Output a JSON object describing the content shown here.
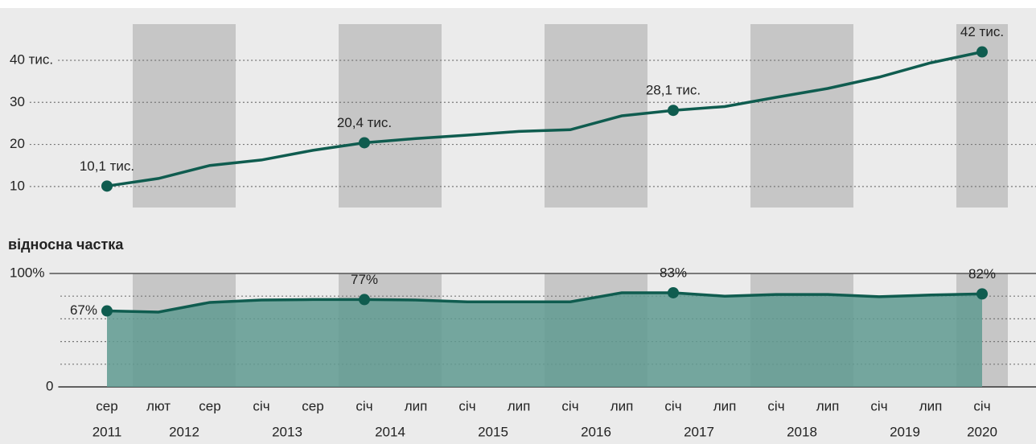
{
  "chart_data": [
    {
      "type": "line",
      "color": "#0f5c4f",
      "values": [
        10.1,
        11.9,
        15,
        16.3,
        18.6,
        20.4,
        21.4,
        22.2,
        23.1,
        23.5,
        26.8,
        28.1,
        29.0,
        31.2,
        33.3,
        36,
        39.4,
        42
      ],
      "value_labels": [
        "10,1 тис.",
        null,
        null,
        null,
        null,
        "20,4 тис.",
        null,
        null,
        null,
        null,
        null,
        "28,1 тис.",
        null,
        null,
        null,
        null,
        null,
        "42 тис."
      ],
      "ylim": [
        5,
        48.6
      ],
      "yticks": [
        10,
        20,
        30,
        {
          "value": 40,
          "label": "40 тис."
        }
      ],
      "grid": true
    },
    {
      "type": "area",
      "subtitle": "відносна частка",
      "color": "#0f5c4f",
      "fill": "#5f9a90",
      "categories": [
        "сер",
        "лют",
        "сер",
        "січ",
        "сер",
        "січ",
        "лип",
        "січ",
        "лип",
        "січ",
        "лип",
        "січ",
        "лип",
        "січ",
        "лип",
        "січ",
        "лип",
        "січ"
      ],
      "x_groups": [
        {
          "label": "2011",
          "categories": [
            0
          ],
          "shaded": false
        },
        {
          "label": "2012",
          "categories": [
            1,
            2
          ],
          "shaded": true
        },
        {
          "label": "2013",
          "categories": [
            3,
            4
          ],
          "shaded": false
        },
        {
          "label": "2014",
          "categories": [
            5,
            6
          ],
          "shaded": true
        },
        {
          "label": "2015",
          "categories": [
            7,
            8
          ],
          "shaded": false
        },
        {
          "label": "2016",
          "categories": [
            9,
            10
          ],
          "shaded": true
        },
        {
          "label": "2017",
          "categories": [
            11,
            12
          ],
          "shaded": false
        },
        {
          "label": "2018",
          "categories": [
            13,
            14
          ],
          "shaded": true
        },
        {
          "label": "2019",
          "categories": [
            15,
            16
          ],
          "shaded": false
        },
        {
          "label": "2020",
          "categories": [
            17
          ],
          "shaded": true
        }
      ],
      "values": [
        67,
        66,
        74.5,
        76.6,
        77,
        77,
        76.6,
        75,
        75,
        75,
        83,
        83,
        80,
        81.5,
        81.5,
        79.5,
        81,
        82
      ],
      "value_labels": [
        "67%",
        null,
        null,
        null,
        null,
        "77%",
        null,
        null,
        null,
        null,
        null,
        "83%",
        null,
        null,
        null,
        null,
        null,
        "82%"
      ],
      "ylim": [
        0,
        100
      ],
      "yticks": [
        0,
        {
          "value": 100,
          "label": "100%"
        }
      ],
      "minor_yticks": [
        20,
        40,
        60,
        80
      ],
      "grid": true
    }
  ]
}
